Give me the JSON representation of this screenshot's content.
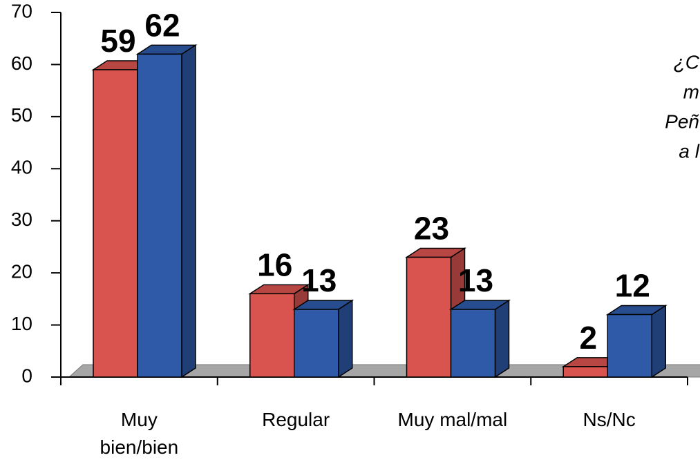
{
  "chart_data": {
    "type": "bar3d",
    "categories": [
      "Muy\nbien/bien",
      "Regular",
      "Muy mal/mal",
      "Ns/Nc"
    ],
    "series": [
      {
        "color": "#d9534f",
        "values": [
          59,
          16,
          23,
          2
        ]
      },
      {
        "color": "#2e5aa8",
        "values": [
          62,
          13,
          13,
          12
        ]
      }
    ],
    "ylim": [
      0,
      70
    ],
    "yticks": [
      0,
      10,
      20,
      30,
      40,
      50,
      60,
      70
    ],
    "annotation": [
      "¿C",
      "m",
      "Peñ",
      "a l"
    ]
  }
}
